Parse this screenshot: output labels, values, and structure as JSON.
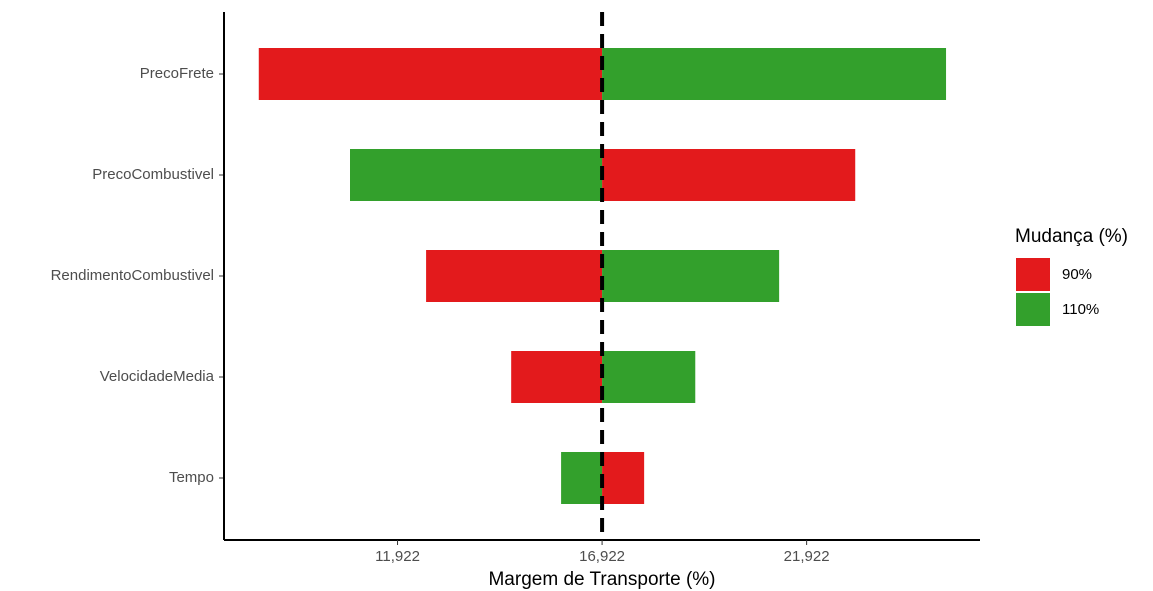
{
  "chart_data": {
    "type": "bar",
    "orientation": "horizontal",
    "categories": [
      "PrecoFrete",
      "PrecoCombustivel",
      "RendimentoCombustivel",
      "VelocidadeMedia",
      "Tempo"
    ],
    "base": 16.922,
    "series": [
      {
        "name": "90%",
        "color": "#e31a1c",
        "values": [
          8.53,
          23.11,
          12.62,
          14.7,
          17.95
        ]
      },
      {
        "name": "110%",
        "color": "#33a02c",
        "values": [
          25.33,
          10.76,
          21.25,
          19.2,
          15.92
        ]
      }
    ],
    "xlim": [
      7.68,
      26.16
    ],
    "xticks": [
      {
        "value": 11.922,
        "label": "11,922"
      },
      {
        "value": 16.922,
        "label": "16,922"
      },
      {
        "value": 21.922,
        "label": "21,922"
      }
    ],
    "xlabel": "Margem de Transporte (%)",
    "legend_title": "Mudança (%)",
    "legend_position": "right"
  }
}
